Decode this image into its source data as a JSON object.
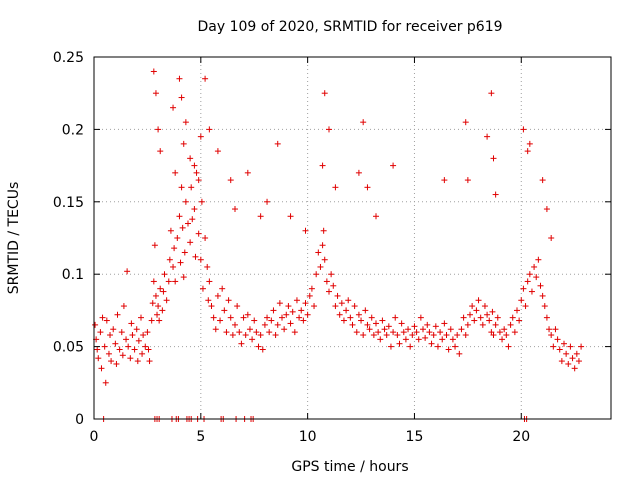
{
  "chart_data": {
    "type": "scatter",
    "title": "Day 109 of 2020, SRMTID for receiver p619",
    "xlabel": "GPS time / hours",
    "ylabel": "SRMTID / TECUs",
    "xlim": [
      0,
      24.2
    ],
    "ylim": [
      0,
      0.25
    ],
    "xticks": [
      0,
      5,
      10,
      15,
      20
    ],
    "xtick_labels": [
      "0",
      "5",
      "10",
      "15",
      "20"
    ],
    "yticks": [
      0,
      0.05,
      0.1,
      0.15,
      0.2,
      0.25
    ],
    "ytick_labels": [
      "0",
      "0.05",
      "0.1",
      "0.15",
      "0.2",
      "0.25"
    ],
    "grid": true,
    "marker": "+",
    "color": "#e00000",
    "series": [
      {
        "name": "SRMTID",
        "x": [
          0.05,
          0.1,
          0.15,
          0.2,
          0.3,
          0.35,
          0.4,
          0.5,
          0.55,
          0.6,
          0.7,
          0.75,
          0.8,
          0.9,
          1.0,
          1.05,
          1.1,
          1.2,
          1.3,
          1.35,
          1.4,
          1.5,
          1.55,
          1.6,
          1.7,
          1.75,
          1.8,
          1.9,
          2.0,
          2.05,
          2.1,
          2.2,
          2.25,
          2.3,
          2.4,
          2.5,
          2.55,
          2.6,
          2.7,
          2.75,
          2.8,
          2.85,
          2.9,
          2.95,
          3.0,
          3.05,
          3.1,
          3.2,
          3.25,
          3.3,
          3.4,
          3.5,
          3.55,
          3.6,
          3.7,
          3.75,
          3.8,
          3.9,
          4.0,
          4.05,
          4.1,
          4.15,
          4.2,
          4.25,
          4.3,
          4.4,
          4.5,
          4.55,
          4.6,
          4.7,
          4.75,
          4.8,
          4.9,
          5.0,
          5.05,
          5.1,
          5.2,
          5.3,
          5.35,
          5.4,
          5.5,
          5.6,
          5.7,
          5.8,
          5.9,
          6.0,
          6.1,
          6.2,
          6.3,
          6.4,
          6.5,
          6.6,
          6.7,
          6.8,
          6.9,
          7.0,
          7.1,
          7.2,
          7.3,
          7.4,
          7.5,
          7.6,
          7.7,
          7.8,
          7.9,
          8.0,
          8.1,
          8.2,
          8.3,
          8.4,
          8.5,
          8.6,
          8.7,
          8.8,
          8.9,
          9.0,
          9.1,
          9.2,
          9.3,
          9.4,
          9.5,
          9.6,
          9.7,
          9.8,
          9.9,
          10.0,
          10.1,
          10.2,
          10.3,
          10.4,
          10.5,
          10.6,
          10.7,
          10.75,
          10.8,
          10.9,
          11.0,
          11.1,
          11.2,
          11.3,
          11.4,
          11.5,
          11.6,
          11.7,
          11.8,
          11.9,
          12.0,
          12.1,
          12.2,
          12.3,
          12.4,
          12.5,
          12.6,
          12.7,
          12.8,
          12.9,
          13.0,
          13.1,
          13.2,
          13.3,
          13.4,
          13.5,
          13.6,
          13.7,
          13.8,
          13.9,
          14.0,
          14.1,
          14.2,
          14.3,
          14.4,
          14.5,
          14.6,
          14.7,
          14.8,
          14.9,
          15.0,
          15.1,
          15.2,
          15.3,
          15.4,
          15.5,
          15.6,
          15.7,
          15.8,
          15.9,
          16.0,
          16.1,
          16.2,
          16.3,
          16.4,
          16.5,
          16.6,
          16.7,
          16.8,
          16.9,
          17.0,
          17.1,
          17.2,
          17.3,
          17.4,
          17.5,
          17.6,
          17.7,
          17.8,
          17.9,
          18.0,
          18.1,
          18.2,
          18.3,
          18.4,
          18.5,
          18.6,
          18.65,
          18.7,
          18.8,
          18.9,
          19.0,
          19.1,
          19.2,
          19.3,
          19.4,
          19.5,
          19.6,
          19.7,
          19.8,
          19.9,
          20.0,
          20.1,
          20.2,
          20.3,
          20.4,
          20.5,
          20.6,
          20.7,
          20.8,
          20.9,
          21.0,
          21.1,
          21.2,
          21.3,
          21.4,
          21.5,
          21.6,
          21.7,
          21.8,
          21.9,
          22.0,
          22.1,
          22.2,
          22.3,
          22.4,
          22.5,
          22.6,
          22.7,
          0.45,
          2.85,
          2.95,
          3.05,
          3.65,
          3.85,
          3.95,
          4.35,
          4.45,
          4.55,
          4.85,
          5.15,
          5.95,
          6.05,
          6.65,
          7.05,
          7.35,
          7.45,
          20.15,
          20.25,
          2.8,
          2.9,
          3.0,
          3.1,
          3.7,
          3.8,
          4.0,
          4.1,
          4.2,
          4.3,
          4.5,
          4.7,
          4.9,
          5.0,
          5.2,
          5.4,
          5.8,
          6.4,
          6.6,
          7.2,
          7.8,
          8.1,
          8.6,
          9.2,
          9.9,
          10.7,
          10.8,
          11.0,
          11.3,
          12.4,
          12.6,
          12.8,
          13.2,
          14.0,
          16.4,
          17.4,
          17.5,
          18.4,
          18.6,
          18.7,
          18.8,
          20.1,
          20.3,
          20.4,
          21.0,
          21.2,
          21.4,
          22.8
        ],
        "y": [
          0.065,
          0.055,
          0.048,
          0.042,
          0.06,
          0.035,
          0.07,
          0.05,
          0.025,
          0.068,
          0.045,
          0.058,
          0.04,
          0.062,
          0.052,
          0.038,
          0.072,
          0.048,
          0.06,
          0.044,
          0.078,
          0.055,
          0.102,
          0.05,
          0.042,
          0.066,
          0.058,
          0.048,
          0.062,
          0.04,
          0.054,
          0.07,
          0.045,
          0.058,
          0.05,
          0.06,
          0.048,
          0.04,
          0.068,
          0.08,
          0.095,
          0.12,
          0.085,
          0.072,
          0.078,
          0.068,
          0.09,
          0.075,
          0.088,
          0.1,
          0.082,
          0.095,
          0.11,
          0.13,
          0.105,
          0.118,
          0.095,
          0.125,
          0.14,
          0.108,
          0.16,
          0.132,
          0.098,
          0.115,
          0.15,
          0.135,
          0.122,
          0.16,
          0.138,
          0.145,
          0.112,
          0.17,
          0.128,
          0.11,
          0.15,
          0.09,
          0.125,
          0.105,
          0.082,
          0.095,
          0.078,
          0.07,
          0.062,
          0.085,
          0.068,
          0.09,
          0.075,
          0.06,
          0.082,
          0.07,
          0.058,
          0.065,
          0.078,
          0.06,
          0.052,
          0.07,
          0.058,
          0.072,
          0.062,
          0.055,
          0.068,
          0.06,
          0.05,
          0.058,
          0.048,
          0.065,
          0.07,
          0.06,
          0.068,
          0.075,
          0.058,
          0.065,
          0.08,
          0.07,
          0.062,
          0.072,
          0.078,
          0.066,
          0.074,
          0.06,
          0.082,
          0.07,
          0.075,
          0.068,
          0.08,
          0.072,
          0.085,
          0.09,
          0.078,
          0.1,
          0.115,
          0.105,
          0.12,
          0.13,
          0.11,
          0.095,
          0.088,
          0.1,
          0.092,
          0.078,
          0.085,
          0.072,
          0.08,
          0.068,
          0.075,
          0.082,
          0.07,
          0.065,
          0.078,
          0.06,
          0.072,
          0.068,
          0.058,
          0.075,
          0.065,
          0.062,
          0.07,
          0.058,
          0.066,
          0.06,
          0.055,
          0.068,
          0.062,
          0.058,
          0.064,
          0.05,
          0.06,
          0.07,
          0.058,
          0.052,
          0.066,
          0.06,
          0.055,
          0.062,
          0.05,
          0.058,
          0.064,
          0.06,
          0.055,
          0.07,
          0.062,
          0.056,
          0.065,
          0.06,
          0.052,
          0.058,
          0.064,
          0.05,
          0.06,
          0.055,
          0.066,
          0.058,
          0.048,
          0.062,
          0.055,
          0.05,
          0.058,
          0.045,
          0.062,
          0.07,
          0.058,
          0.065,
          0.072,
          0.078,
          0.068,
          0.075,
          0.082,
          0.07,
          0.065,
          0.078,
          0.072,
          0.068,
          0.06,
          0.074,
          0.058,
          0.065,
          0.07,
          0.06,
          0.055,
          0.062,
          0.058,
          0.05,
          0.065,
          0.07,
          0.06,
          0.075,
          0.068,
          0.082,
          0.09,
          0.078,
          0.095,
          0.1,
          0.088,
          0.105,
          0.098,
          0.11,
          0.092,
          0.085,
          0.078,
          0.07,
          0.062,
          0.058,
          0.05,
          0.062,
          0.055,
          0.048,
          0.04,
          0.052,
          0.045,
          0.038,
          0.05,
          0.042,
          0.035,
          0.045,
          0.04,
          0.0,
          0.0,
          0.0,
          0.0,
          0.0,
          0.0,
          0.0,
          0.0,
          0.0,
          0.0,
          0.0,
          0.0,
          0.0,
          0.0,
          0.0,
          0.0,
          0.0,
          0.0,
          0.0,
          0.0,
          0.24,
          0.225,
          0.2,
          0.185,
          0.215,
          0.17,
          0.235,
          0.222,
          0.19,
          0.205,
          0.18,
          0.175,
          0.165,
          0.195,
          0.235,
          0.2,
          0.185,
          0.165,
          0.145,
          0.17,
          0.14,
          0.15,
          0.19,
          0.14,
          0.13,
          0.175,
          0.225,
          0.2,
          0.16,
          0.17,
          0.205,
          0.16,
          0.14,
          0.175,
          0.165,
          0.205,
          0.165,
          0.195,
          0.225,
          0.18,
          0.155,
          0.2,
          0.185,
          0.19,
          0.165,
          0.145,
          0.125,
          0.05
        ]
      }
    ]
  }
}
